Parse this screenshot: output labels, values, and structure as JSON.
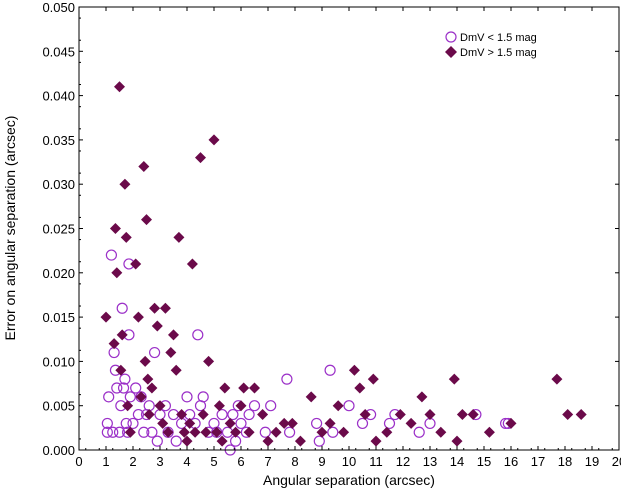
{
  "chart_data": {
    "type": "scatter",
    "xlabel": "Angular separation (arcsec)",
    "ylabel": "Error on angular separation (arcsec)",
    "xlim": [
      0,
      20
    ],
    "ylim": [
      0,
      0.05
    ],
    "x_ticks": [
      "0",
      "1",
      "2",
      "3",
      "4",
      "5",
      "6",
      "7",
      "8",
      "9",
      "10",
      "11",
      "12",
      "13",
      "14",
      "15",
      "16",
      "17",
      "18",
      "19",
      "20"
    ],
    "y_ticks": [
      "0.000",
      "0.005",
      "0.010",
      "0.015",
      "0.020",
      "0.025",
      "0.030",
      "0.035",
      "0.040",
      "0.045",
      "0.050"
    ],
    "grid": false,
    "legend_position": "top-right",
    "colors": {
      "circle": "#9b30c8",
      "diamond": "#6b0a4a"
    },
    "series": [
      {
        "name": "DmV < 1.5 mag",
        "marker": "open-circle",
        "points": [
          [
            1.05,
            0.002
          ],
          [
            1.05,
            0.003
          ],
          [
            1.1,
            0.006
          ],
          [
            1.2,
            0.022
          ],
          [
            1.25,
            0.002
          ],
          [
            1.3,
            0.011
          ],
          [
            1.35,
            0.009
          ],
          [
            1.4,
            0.007
          ],
          [
            1.5,
            0.002
          ],
          [
            1.55,
            0.005
          ],
          [
            1.6,
            0.016
          ],
          [
            1.65,
            0.007
          ],
          [
            1.7,
            0.008
          ],
          [
            1.75,
            0.003
          ],
          [
            1.8,
            0.002
          ],
          [
            1.85,
            0.021
          ],
          [
            1.85,
            0.013
          ],
          [
            1.9,
            0.006
          ],
          [
            2.0,
            0.003
          ],
          [
            2.1,
            0.007
          ],
          [
            2.2,
            0.004
          ],
          [
            2.3,
            0.006
          ],
          [
            2.4,
            0.002
          ],
          [
            2.5,
            0.004
          ],
          [
            2.6,
            0.005
          ],
          [
            2.7,
            0.002
          ],
          [
            2.8,
            0.011
          ],
          [
            2.9,
            0.001
          ],
          [
            3.0,
            0.004
          ],
          [
            3.2,
            0.005
          ],
          [
            3.3,
            0.002
          ],
          [
            3.5,
            0.004
          ],
          [
            3.6,
            0.001
          ],
          [
            3.8,
            0.003
          ],
          [
            4.0,
            0.006
          ],
          [
            4.1,
            0.004
          ],
          [
            4.3,
            0.003
          ],
          [
            4.4,
            0.013
          ],
          [
            4.5,
            0.005
          ],
          [
            4.6,
            0.006
          ],
          [
            4.8,
            0.002
          ],
          [
            5.0,
            0.003
          ],
          [
            5.1,
            0.002
          ],
          [
            5.3,
            0.004
          ],
          [
            5.5,
            0.002
          ],
          [
            5.6,
            0.0
          ],
          [
            5.7,
            0.004
          ],
          [
            5.8,
            0.001
          ],
          [
            5.9,
            0.005
          ],
          [
            6.0,
            0.003
          ],
          [
            6.2,
            0.002
          ],
          [
            6.3,
            0.004
          ],
          [
            6.5,
            0.005
          ],
          [
            6.9,
            0.002
          ],
          [
            7.1,
            0.005
          ],
          [
            7.7,
            0.008
          ],
          [
            7.8,
            0.002
          ],
          [
            8.8,
            0.003
          ],
          [
            8.9,
            0.001
          ],
          [
            9.3,
            0.009
          ],
          [
            9.4,
            0.002
          ],
          [
            10.0,
            0.005
          ],
          [
            10.5,
            0.003
          ],
          [
            10.8,
            0.004
          ],
          [
            11.5,
            0.003
          ],
          [
            11.7,
            0.004
          ],
          [
            12.6,
            0.002
          ],
          [
            13.0,
            0.003
          ],
          [
            14.7,
            0.004
          ],
          [
            15.8,
            0.003
          ],
          [
            15.9,
            0.003
          ]
        ]
      },
      {
        "name": "DmV > 1.5 mag",
        "marker": "filled-diamond",
        "points": [
          [
            1.0,
            0.015
          ],
          [
            1.3,
            0.012
          ],
          [
            1.35,
            0.025
          ],
          [
            1.4,
            0.02
          ],
          [
            1.5,
            0.041
          ],
          [
            1.55,
            0.009
          ],
          [
            1.6,
            0.013
          ],
          [
            1.7,
            0.03
          ],
          [
            1.75,
            0.024
          ],
          [
            1.8,
            0.005
          ],
          [
            1.9,
            0.002
          ],
          [
            2.1,
            0.021
          ],
          [
            2.2,
            0.015
          ],
          [
            2.3,
            0.006
          ],
          [
            2.4,
            0.032
          ],
          [
            2.45,
            0.01
          ],
          [
            2.5,
            0.026
          ],
          [
            2.55,
            0.008
          ],
          [
            2.6,
            0.004
          ],
          [
            2.7,
            0.007
          ],
          [
            2.8,
            0.016
          ],
          [
            2.9,
            0.014
          ],
          [
            3.0,
            0.005
          ],
          [
            3.1,
            0.003
          ],
          [
            3.2,
            0.016
          ],
          [
            3.3,
            0.002
          ],
          [
            3.4,
            0.011
          ],
          [
            3.5,
            0.013
          ],
          [
            3.6,
            0.009
          ],
          [
            3.7,
            0.024
          ],
          [
            3.8,
            0.004
          ],
          [
            3.9,
            0.002
          ],
          [
            4.0,
            0.001
          ],
          [
            4.1,
            0.003
          ],
          [
            4.2,
            0.021
          ],
          [
            4.3,
            0.002
          ],
          [
            4.5,
            0.033
          ],
          [
            4.6,
            0.004
          ],
          [
            4.7,
            0.002
          ],
          [
            4.8,
            0.01
          ],
          [
            5.0,
            0.035
          ],
          [
            5.1,
            0.002
          ],
          [
            5.2,
            0.005
          ],
          [
            5.3,
            0.001
          ],
          [
            5.4,
            0.007
          ],
          [
            5.6,
            0.003
          ],
          [
            5.8,
            0.002
          ],
          [
            6.0,
            0.005
          ],
          [
            6.1,
            0.007
          ],
          [
            6.3,
            0.002
          ],
          [
            6.5,
            0.007
          ],
          [
            6.8,
            0.004
          ],
          [
            7.0,
            0.001
          ],
          [
            7.3,
            0.002
          ],
          [
            7.6,
            0.003
          ],
          [
            7.9,
            0.003
          ],
          [
            8.2,
            0.001
          ],
          [
            8.6,
            0.006
          ],
          [
            9.0,
            0.002
          ],
          [
            9.3,
            0.003
          ],
          [
            9.6,
            0.005
          ],
          [
            9.8,
            0.002
          ],
          [
            10.2,
            0.009
          ],
          [
            10.4,
            0.007
          ],
          [
            10.6,
            0.004
          ],
          [
            10.9,
            0.008
          ],
          [
            11.0,
            0.001
          ],
          [
            11.4,
            0.002
          ],
          [
            11.9,
            0.004
          ],
          [
            12.3,
            0.003
          ],
          [
            12.7,
            0.006
          ],
          [
            13.0,
            0.004
          ],
          [
            13.4,
            0.002
          ],
          [
            13.9,
            0.008
          ],
          [
            14.0,
            0.001
          ],
          [
            14.2,
            0.004
          ],
          [
            14.6,
            0.004
          ],
          [
            15.2,
            0.002
          ],
          [
            16.0,
            0.003
          ],
          [
            17.7,
            0.008
          ],
          [
            18.1,
            0.004
          ],
          [
            18.6,
            0.004
          ]
        ]
      }
    ]
  }
}
